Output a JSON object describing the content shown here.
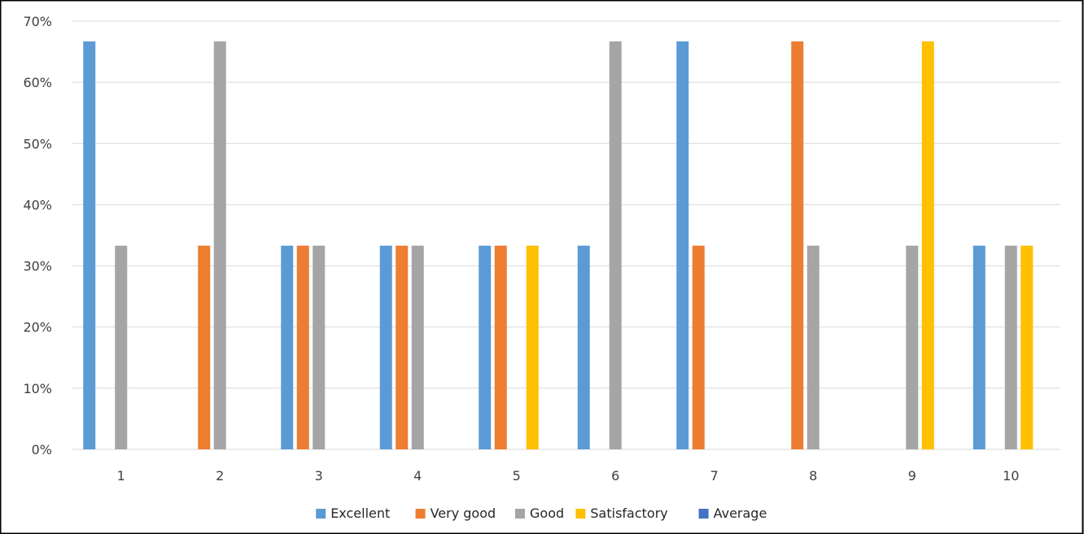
{
  "chart_data": {
    "type": "bar",
    "categories": [
      "1",
      "2",
      "3",
      "4",
      "5",
      "6",
      "7",
      "8",
      "9",
      "10"
    ],
    "y_ticks": [
      "0%",
      "10%",
      "20%",
      "30%",
      "40%",
      "50%",
      "60%",
      "70%"
    ],
    "ylim": [
      0,
      70
    ],
    "grid": true,
    "legend_position": "bottom",
    "series": [
      {
        "name": "Excellent",
        "color": "#5B9BD5",
        "values": [
          66.7,
          0,
          33.3,
          33.3,
          33.3,
          33.3,
          66.7,
          0,
          0,
          33.3
        ]
      },
      {
        "name": "Very good",
        "color": "#ED7D31",
        "values": [
          0,
          33.3,
          33.3,
          33.3,
          33.3,
          0,
          33.3,
          66.7,
          0,
          0
        ]
      },
      {
        "name": "Good",
        "color": "#A5A5A5",
        "values": [
          33.3,
          66.7,
          33.3,
          33.3,
          0,
          66.7,
          0,
          33.3,
          33.3,
          33.3
        ]
      },
      {
        "name": "Satisfactory",
        "color": "#FFC000",
        "values": [
          0,
          0,
          0,
          0,
          33.3,
          0,
          0,
          0,
          66.7,
          33.3
        ]
      },
      {
        "name": "Average",
        "color": "#4472C4",
        "values": [
          0,
          0,
          0,
          0,
          0,
          0,
          0,
          0,
          0,
          0
        ]
      }
    ]
  }
}
